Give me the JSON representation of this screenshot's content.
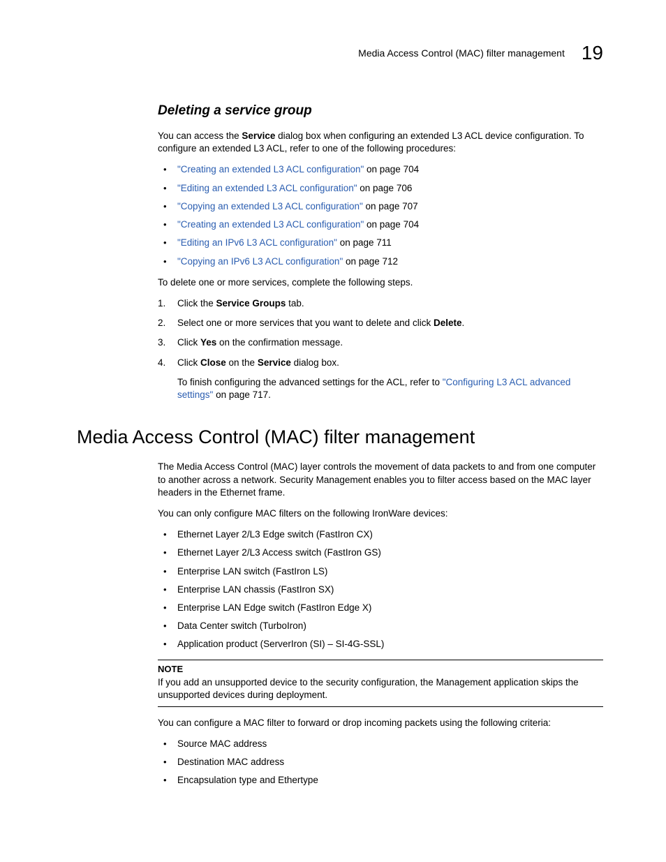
{
  "header": {
    "title": "Media Access Control (MAC) filter management",
    "chapter": "19"
  },
  "section1": {
    "title": "Deleting a service group",
    "intro_pre": "You can access the ",
    "intro_bold1": "Service",
    "intro_post": " dialog box when configuring an extended L3 ACL device configuration. To configure an extended L3 ACL, refer to one of the following procedures:",
    "links": [
      {
        "text": "\"Creating an extended L3 ACL configuration\"",
        "suffix": " on page 704"
      },
      {
        "text": "\"Editing an extended L3 ACL configuration\"",
        "suffix": " on page 706"
      },
      {
        "text": "\"Copying an extended L3 ACL configuration\"",
        "suffix": " on page 707"
      },
      {
        "text": "\"Creating an extended L3 ACL configuration\"",
        "suffix": " on page 704"
      },
      {
        "text": "\"Editing an IPv6 L3 ACL configuration\"",
        "suffix": " on page 711"
      },
      {
        "text": "\"Copying an IPv6 L3 ACL configuration\"",
        "suffix": " on page 712"
      }
    ],
    "steps_intro": "To delete one or more services, complete the following steps.",
    "step1_pre": "Click the ",
    "step1_bold": "Service Groups",
    "step1_post": " tab.",
    "step2_pre": "Select one or more services that you want to delete and click ",
    "step2_bold": "Delete",
    "step2_post": ".",
    "step3_pre": "Click ",
    "step3_bold": "Yes",
    "step3_post": " on the confirmation message.",
    "step4_pre": "Click ",
    "step4_bold1": "Close",
    "step4_mid": " on the ",
    "step4_bold2": "Service",
    "step4_post": " dialog box.",
    "step4_sub_pre": "To finish configuring the advanced settings for the ACL, refer to ",
    "step4_sub_link": "\"Configuring L3 ACL advanced settings\"",
    "step4_sub_post": " on page 717."
  },
  "section2": {
    "title": "Media Access Control (MAC) filter management",
    "para1": "The Media Access Control (MAC) layer controls the movement of data packets to and from one computer to another across a network. Security Management enables you to filter access based on the MAC layer headers in the Ethernet frame.",
    "para2": "You can only configure MAC filters on the following IronWare devices:",
    "devices": [
      "Ethernet Layer 2/L3 Edge switch (FastIron CX)",
      "Ethernet Layer 2/L3 Access switch (FastIron GS)",
      "Enterprise LAN switch (FastIron LS)",
      "Enterprise LAN chassis (FastIron SX)",
      "Enterprise LAN Edge switch (FastIron Edge X)",
      "Data Center switch (TurboIron)",
      "Application product (ServerIron (SI) – SI-4G-SSL)"
    ],
    "note_label": "NOTE",
    "note_text": "If you add an unsupported device to the security configuration, the Management application skips the unsupported devices during deployment.",
    "para3": "You can configure a MAC filter to forward or drop incoming packets using the following criteria:",
    "criteria": [
      "Source MAC address",
      "Destination MAC address",
      "Encapsulation type and Ethertype"
    ]
  }
}
